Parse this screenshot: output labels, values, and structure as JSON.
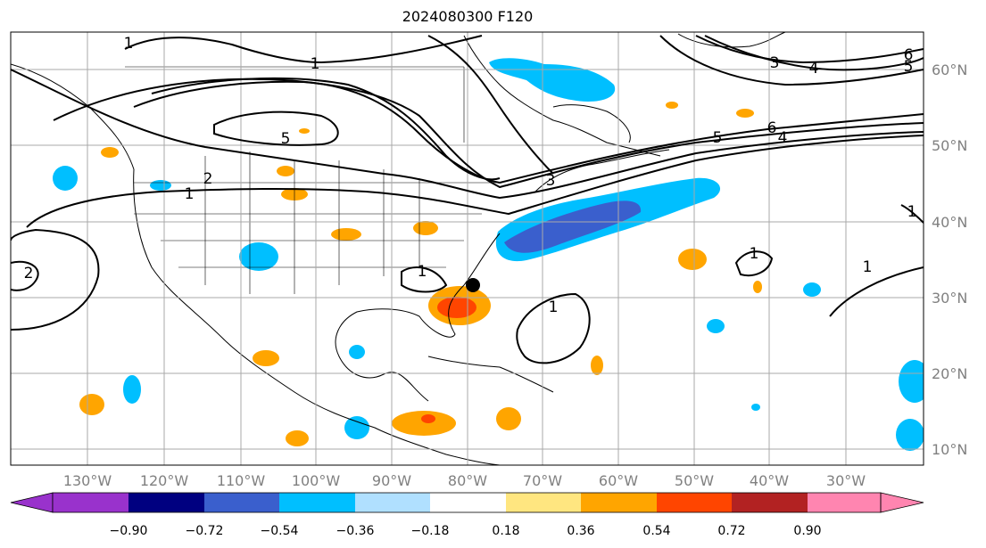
{
  "title": "2024080300 F120",
  "lon_labels": [
    "130°W",
    "120°W",
    "110°W",
    "100°W",
    "90°W",
    "80°W",
    "70°W",
    "60°W",
    "50°W",
    "40°W",
    "30°W"
  ],
  "lat_labels": [
    "10°N",
    "20°N",
    "30°N",
    "40°N",
    "50°N",
    "60°N"
  ],
  "colorbar": {
    "ticks": [
      "−0.90",
      "−0.72",
      "−0.54",
      "−0.36",
      "−0.18",
      "0.18",
      "0.36",
      "0.54",
      "0.72",
      "0.90"
    ],
    "colors": [
      "#9932cc",
      "#000080",
      "#3a5fcd",
      "#00bfff",
      "#b0e0ff",
      "#ffffff",
      "#ffe680",
      "#ffa500",
      "#ff4500",
      "#b22222",
      "#ff85b0"
    ]
  },
  "contour_labels": [
    {
      "text": "1"
    },
    {
      "text": "1"
    },
    {
      "text": "5"
    },
    {
      "text": "2"
    },
    {
      "text": "1"
    },
    {
      "text": "2"
    },
    {
      "text": "3"
    },
    {
      "text": "1"
    },
    {
      "text": "1"
    },
    {
      "text": "3"
    },
    {
      "text": "4"
    },
    {
      "text": "5"
    },
    {
      "text": "6"
    },
    {
      "text": "5"
    },
    {
      "text": "6"
    },
    {
      "text": "4"
    },
    {
      "text": "1"
    },
    {
      "text": "1"
    },
    {
      "text": "1"
    }
  ],
  "colors": {
    "axis_label": "#808080",
    "grid": "#a9a9a9",
    "contour": "#000000",
    "storm_marker": "#000000"
  }
}
